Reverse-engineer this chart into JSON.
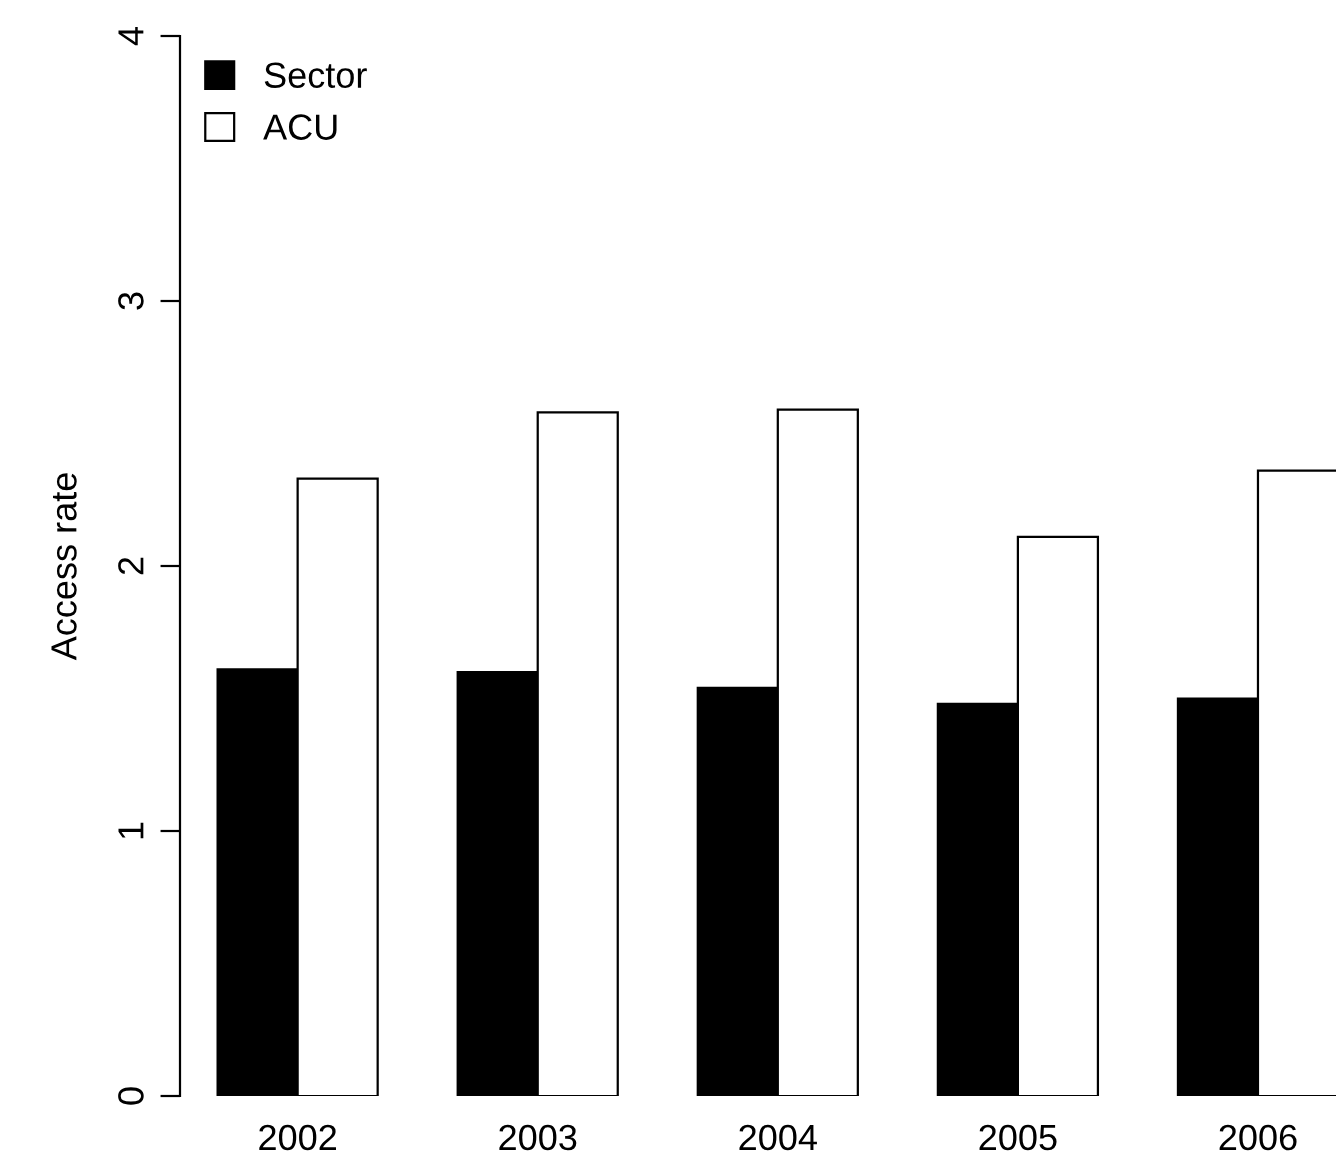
{
  "chart_data": {
    "type": "bar",
    "ylabel": "Access rate",
    "categories": [
      "2002",
      "2003",
      "2004",
      "2005",
      "2006"
    ],
    "series": [
      {
        "name": "Sector",
        "color": "#000000",
        "values": [
          1.61,
          1.6,
          1.54,
          1.48,
          1.5
        ]
      },
      {
        "name": "ACU",
        "color": "#ffffff",
        "values": [
          2.33,
          2.58,
          2.59,
          2.11,
          2.36
        ]
      }
    ],
    "ylim": [
      0,
      4
    ],
    "yticks": [
      0,
      1,
      2,
      3,
      4
    ],
    "grid": false,
    "legend": "top left"
  }
}
